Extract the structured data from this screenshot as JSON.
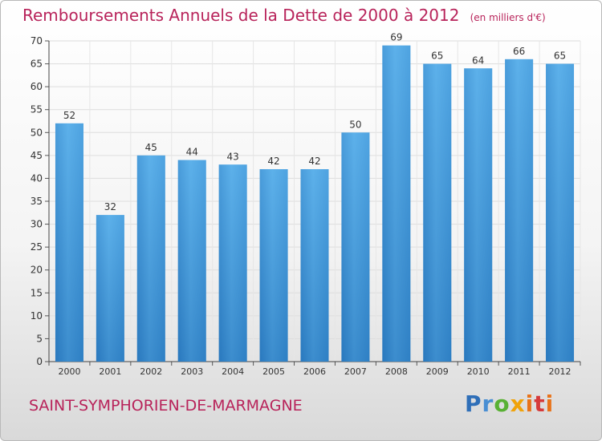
{
  "header": {
    "title": "Remboursements Annuels de la Dette de 2000 à 2012",
    "subtitle": "(en milliers d'€)"
  },
  "footer": {
    "commune": "SAINT-SYMPHORIEN-DE-MARMAGNE",
    "logo": {
      "p": "P",
      "r": "r",
      "o": "o",
      "x": "x",
      "i": "i",
      "t": "t",
      "i2": "i"
    }
  },
  "colors": {
    "bar": "#3a93d8",
    "title": "#b8235a"
  },
  "chart_data": {
    "type": "bar",
    "title": "Remboursements Annuels de la Dette de 2000 à 2012",
    "subtitle": "(en milliers d'€)",
    "xlabel": "",
    "ylabel": "",
    "categories": [
      "2000",
      "2001",
      "2002",
      "2003",
      "2004",
      "2005",
      "2006",
      "2007",
      "2008",
      "2009",
      "2010",
      "2011",
      "2012"
    ],
    "values": [
      52,
      32,
      45,
      44,
      43,
      42,
      42,
      50,
      69,
      65,
      64,
      66,
      65
    ],
    "ylim": [
      0,
      70
    ],
    "yticks": [
      0,
      5,
      10,
      15,
      20,
      25,
      30,
      35,
      40,
      45,
      50,
      55,
      60,
      65,
      70
    ],
    "grid": true,
    "legend": "none"
  }
}
